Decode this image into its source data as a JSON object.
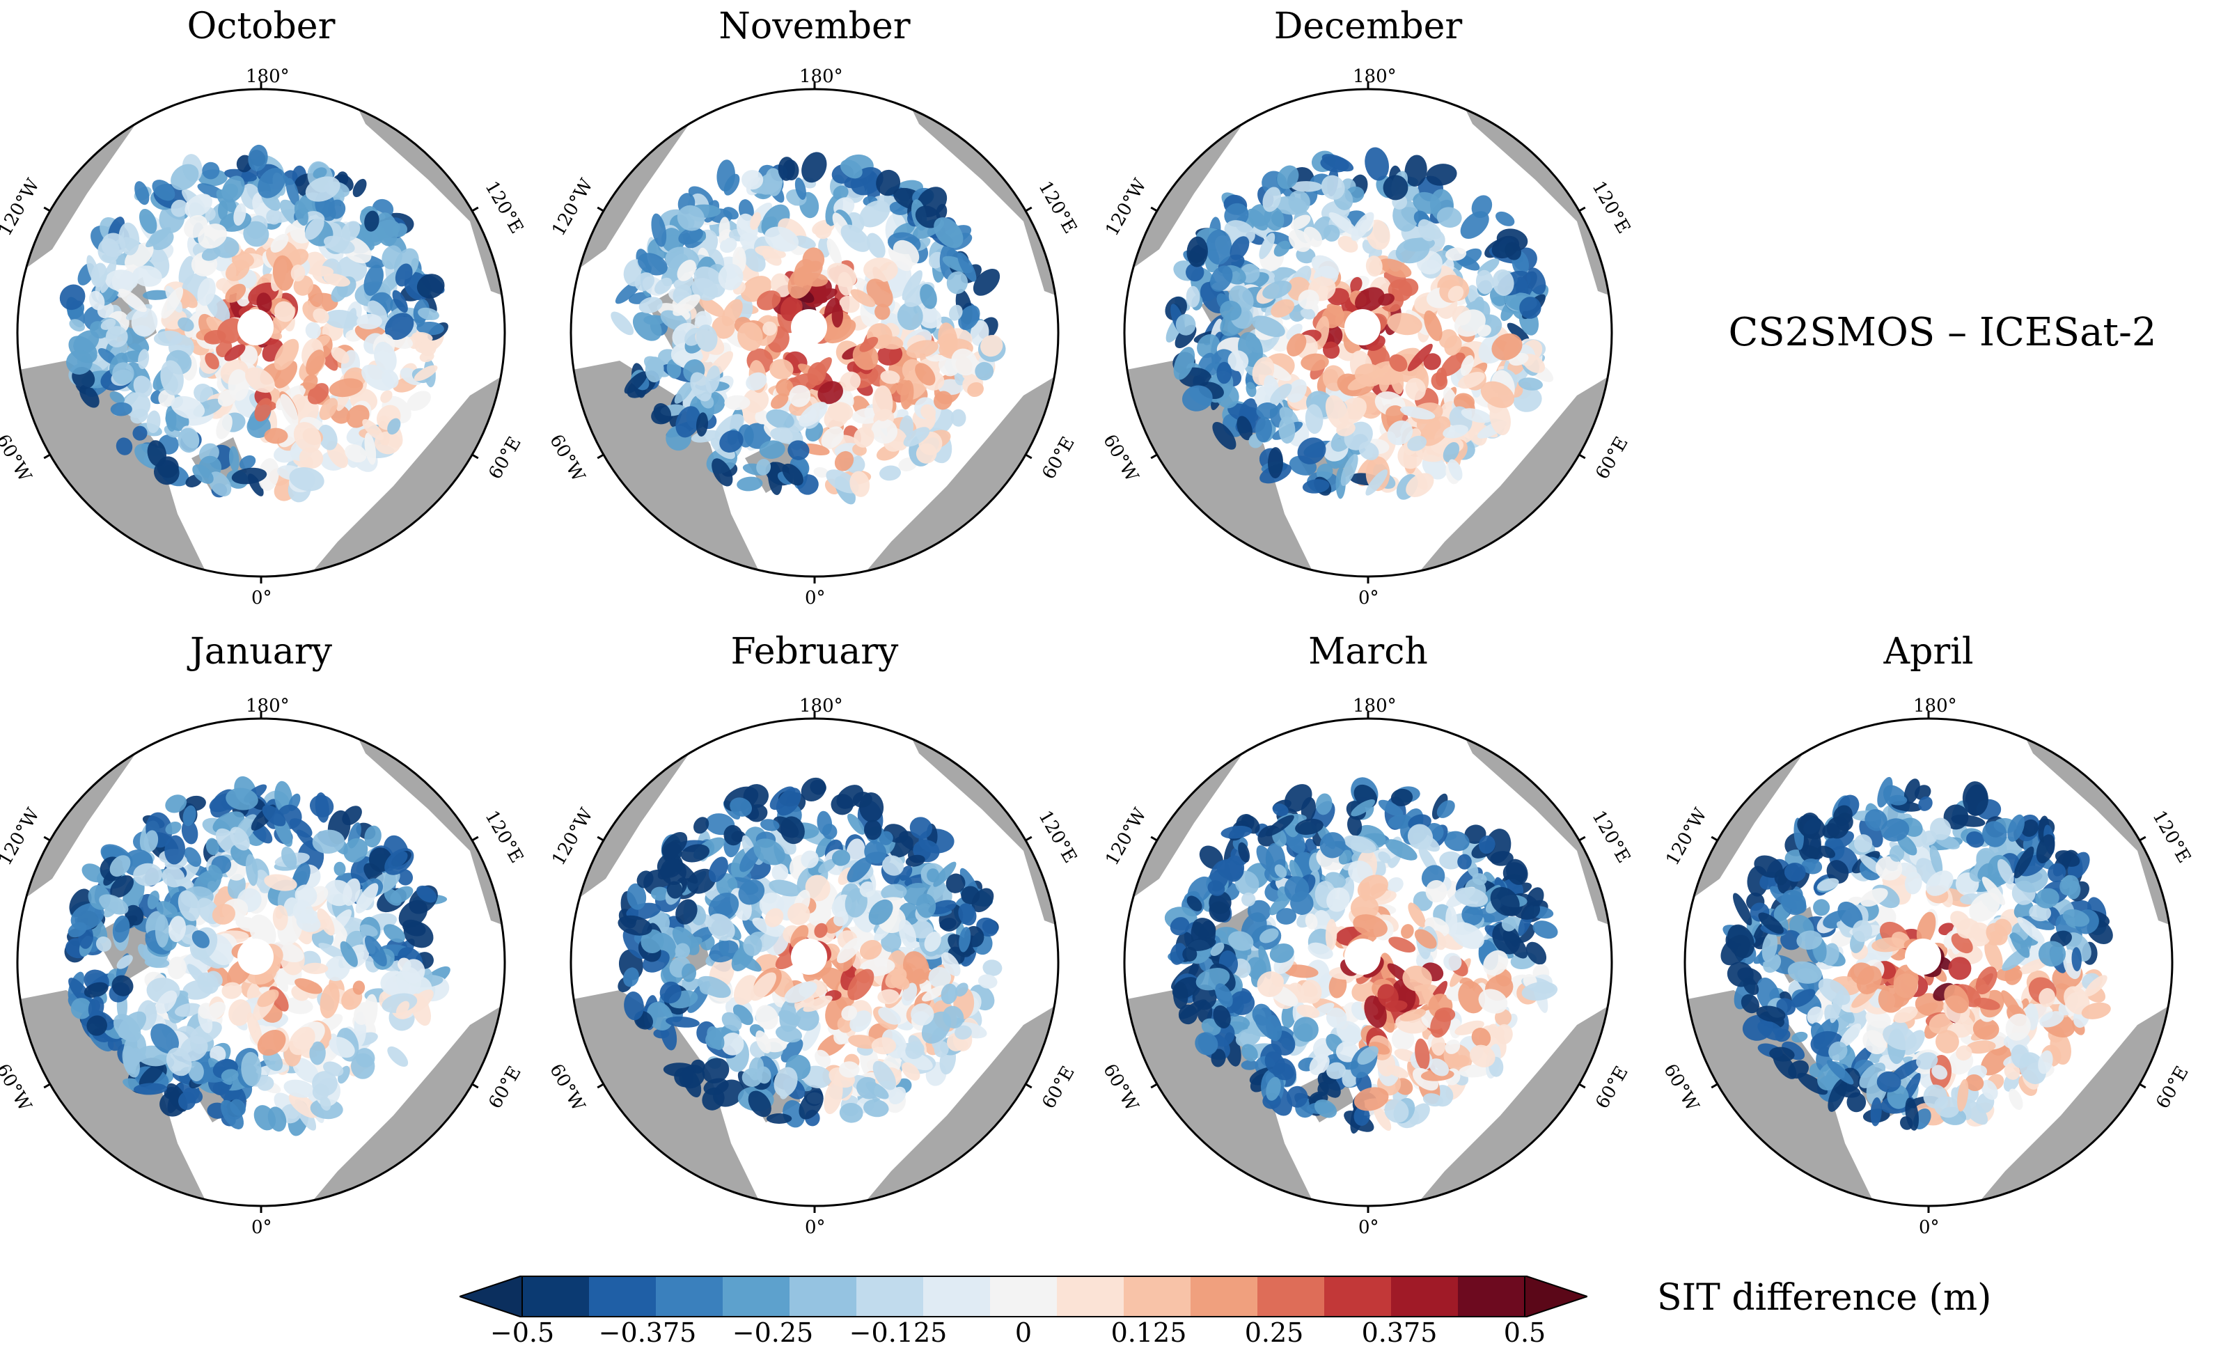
{
  "figure_label": "CS2SMOS – ICESat-2",
  "chart_data": {
    "type": "heatmap",
    "title": "CS2SMOS – ICESat-2",
    "projection": "north polar stereographic",
    "panels": [
      {
        "month": "October",
        "center_thick_diff": 0.3,
        "periphery_diff": -0.4,
        "atlantic_side_diff": 0.3,
        "pacific_side_diff": -0.1
      },
      {
        "month": "November",
        "center_thick_diff": 0.45,
        "periphery_diff": -0.45,
        "atlantic_side_diff": 0.35,
        "pacific_side_diff": -0.05
      },
      {
        "month": "December",
        "center_thick_diff": 0.4,
        "periphery_diff": -0.45,
        "atlantic_side_diff": 0.3,
        "pacific_side_diff": -0.2
      },
      {
        "month": "January",
        "center_thick_diff": 0.2,
        "periphery_diff": -0.45,
        "atlantic_side_diff": 0.2,
        "pacific_side_diff": -0.35
      },
      {
        "month": "February",
        "center_thick_diff": 0.25,
        "periphery_diff": -0.5,
        "atlantic_side_diff": 0.3,
        "pacific_side_diff": -0.4
      },
      {
        "month": "March",
        "center_thick_diff": 0.3,
        "periphery_diff": -0.5,
        "atlantic_side_diff": 0.45,
        "pacific_side_diff": -0.4
      },
      {
        "month": "April",
        "center_thick_diff": 0.35,
        "periphery_diff": -0.5,
        "atlantic_side_diff": 0.45,
        "pacific_side_diff": -0.4
      }
    ],
    "lon_labels": {
      "top": "180°",
      "bottom": "0°",
      "upper_left": "120°W",
      "upper_right": "120°E",
      "lower_left": "60°W",
      "lower_right": "60°E"
    },
    "colorbar": {
      "label": "SIT difference (m)",
      "min": -0.5,
      "max": 0.5,
      "extend": "both",
      "ticks": [
        "−0.5",
        "−0.375",
        "−0.25",
        "−0.125",
        "0",
        "0.125",
        "0.25",
        "0.375",
        "0.5"
      ],
      "colors": [
        "#0b3a72",
        "#1f5fa6",
        "#3a80bd",
        "#5da1cd",
        "#95c3e1",
        "#c1dbed",
        "#e0ebf4",
        "#f3f3f3",
        "#fbe3d6",
        "#f8c3a8",
        "#f0a07e",
        "#de6d58",
        "#c23838",
        "#a01a27",
        "#6d0a1f"
      ],
      "land_color": "#a8a8a8",
      "ocean_color": "#ffffff",
      "undercolor": "#0b2f5e",
      "overcolor": "#5b0718"
    }
  }
}
